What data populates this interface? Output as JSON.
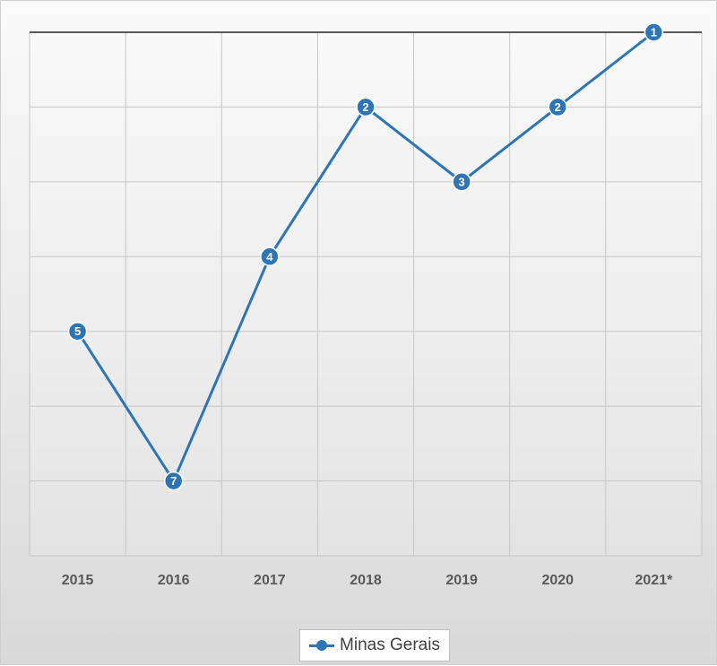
{
  "chart_data": {
    "type": "line",
    "categories": [
      "2015",
      "2016",
      "2017",
      "2018",
      "2019",
      "2020",
      "2021*"
    ],
    "series": [
      {
        "name": "Minas Gerais",
        "values": [
          5,
          7,
          4,
          2,
          3,
          2,
          1
        ],
        "data_labels": [
          "5",
          "7",
          "4",
          "2",
          "3",
          "2",
          "1"
        ],
        "color": "#2e75b6"
      }
    ],
    "y_axis": {
      "reversed": true,
      "range": [
        1,
        8
      ],
      "tick_labels_shown": false
    },
    "grid": true,
    "legend_position": "bottom",
    "title": "",
    "xlabel": "",
    "ylabel": ""
  }
}
